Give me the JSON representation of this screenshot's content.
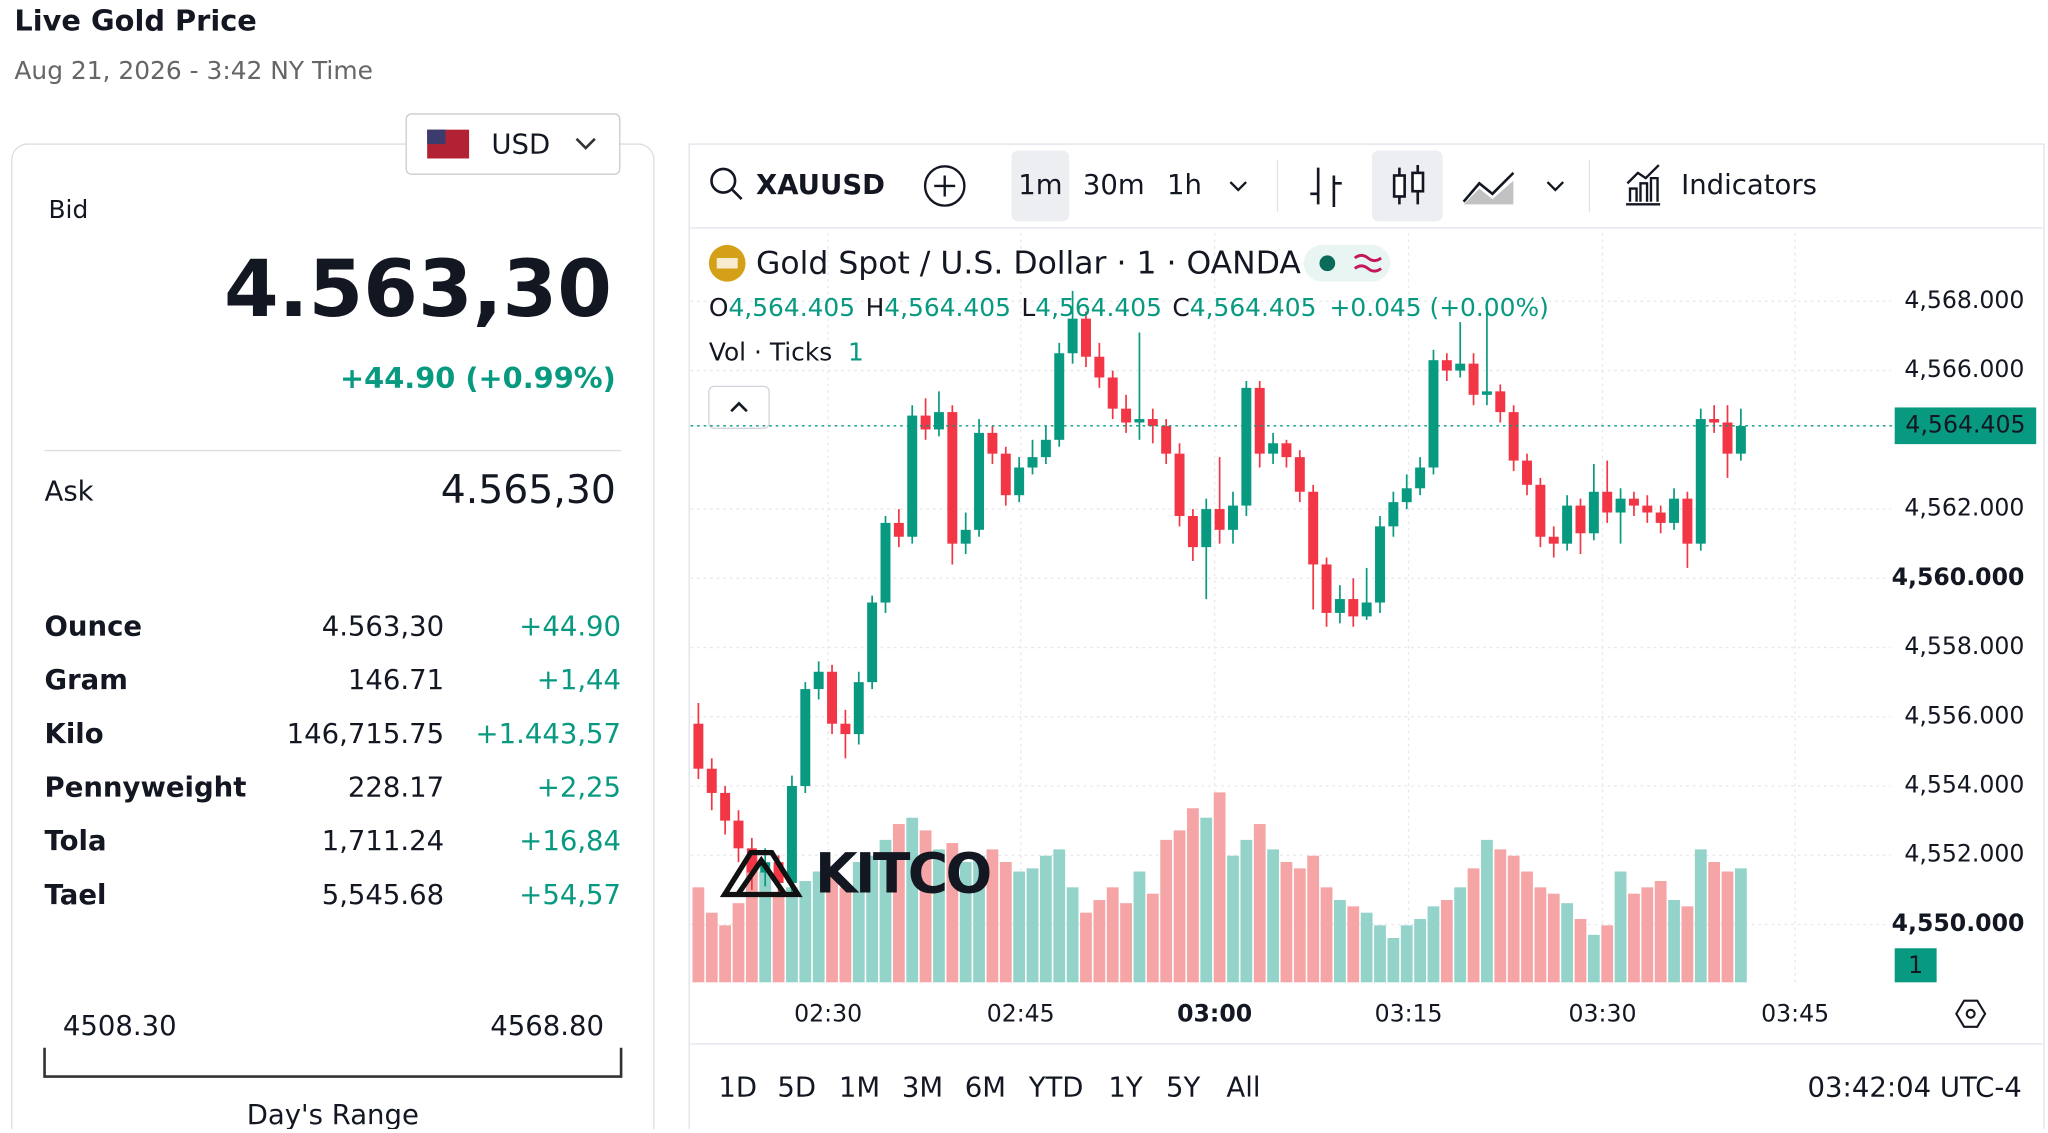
{
  "header": {
    "title": "Live Gold Price",
    "timestamp": "Aug 21, 2026 - 3:42 NY Time"
  },
  "currency": "USD",
  "quote": {
    "bid_label": "Bid",
    "bid": "4.563,30",
    "change": "+44.90 (+0.99%)",
    "ask_label": "Ask",
    "ask": "4.565,30"
  },
  "units": {
    "rows": [
      [
        "Ounce",
        "4.563,30",
        "+44.90"
      ],
      [
        "Gram",
        "146.71",
        "+1,44"
      ],
      [
        "Kilo",
        "146,715.75",
        "+1.443,57"
      ],
      [
        "Pennyweight",
        "228.17",
        "+2,25"
      ],
      [
        "Tola",
        "1,711.24",
        "+16,84"
      ],
      [
        "Tael",
        "5,545.68",
        "+54,57"
      ]
    ]
  },
  "range": {
    "low": "4508.30",
    "high": "4568.80",
    "label": "Day's Range"
  },
  "toolbar": {
    "symbol": "XAUUSD",
    "intervals": [
      "1m",
      "30m",
      "1h"
    ],
    "indicators": "Indicators"
  },
  "watermark": "KITCO",
  "chart_data": {
    "type": "candlestick",
    "title": "Gold Spot / U.S. Dollar · 1 · OANDA",
    "ohlc_legend": [
      {
        "key": "O",
        "value": "4,564.405"
      },
      {
        "key": "H",
        "value": "4,564.405"
      },
      {
        "key": "L",
        "value": "4,564.405"
      },
      {
        "key": "C",
        "value": "4,564.405"
      }
    ],
    "legend_change": "+0.045 (+0.00%)",
    "volume_label": "Vol · Ticks",
    "volume_value": 1,
    "up_color": "#089981",
    "down_color": "#f23645",
    "volume_up_color": "#93d3c9",
    "volume_down_color": "#f5a5a5",
    "open": [
      4555.8,
      4554.5,
      4553.8,
      4553.0,
      4552.2,
      4551.5,
      4551.8,
      4551.2,
      4554.0,
      4556.8,
      4557.3,
      4555.8,
      4555.5,
      4557.0,
      4559.3,
      4561.6,
      4561.2,
      4564.7,
      4564.3,
      4564.8,
      4561.0,
      4561.4,
      4564.2,
      4563.6,
      4562.4,
      4563.2,
      4563.5,
      4564.0,
      4566.5,
      4567.5,
      4566.4,
      4565.8,
      4564.9,
      4564.5,
      4564.6,
      4564.4,
      4563.6,
      4561.8,
      4560.9,
      4562.0,
      4561.4,
      4562.1,
      4565.5,
      4563.6,
      4563.9,
      4563.5,
      4562.5,
      4560.4,
      4559.0,
      4559.4,
      4558.9,
      4559.3,
      4561.5,
      4562.2,
      4562.6,
      4563.2,
      4566.3,
      4566.0,
      4566.2,
      4565.3,
      4565.4,
      4564.8,
      4563.4,
      4562.7,
      4561.2,
      4561.0,
      4562.1,
      4561.3,
      4562.5,
      4561.9,
      4562.3,
      4562.1,
      4561.9,
      4561.6,
      4562.3,
      4561.0,
      4564.6,
      4564.5,
      4563.6
    ],
    "high": [
      4556.4,
      4554.8,
      4554.0,
      4553.3,
      4552.5,
      4552.2,
      4552.0,
      4554.3,
      4557.0,
      4557.6,
      4557.5,
      4556.2,
      4557.3,
      4559.5,
      4561.8,
      4562.0,
      4565.0,
      4565.2,
      4565.4,
      4565.0,
      4561.9,
      4564.6,
      4564.4,
      4563.8,
      4563.5,
      4564.0,
      4564.4,
      4566.8,
      4568.3,
      4567.7,
      4566.8,
      4566.0,
      4565.3,
      4567.1,
      4564.9,
      4564.6,
      4563.9,
      4562.0,
      4562.3,
      4563.5,
      4562.5,
      4565.7,
      4565.7,
      4564.2,
      4564.0,
      4563.7,
      4562.7,
      4560.6,
      4559.8,
      4560.0,
      4560.3,
      4561.8,
      4562.5,
      4563.0,
      4563.5,
      4566.6,
      4566.5,
      4567.4,
      4566.5,
      4567.7,
      4565.6,
      4565.0,
      4563.6,
      4562.9,
      4561.5,
      4562.4,
      4562.3,
      4563.3,
      4563.4,
      4562.6,
      4562.5,
      4562.4,
      4562.1,
      4562.6,
      4562.5,
      4564.9,
      4565.0,
      4565.0,
      4564.9
    ],
    "low": [
      4554.2,
      4553.3,
      4552.6,
      4551.8,
      4551.0,
      4551.1,
      4550.8,
      4550.9,
      4553.8,
      4556.5,
      4555.5,
      4554.8,
      4555.2,
      4556.8,
      4559.0,
      4560.9,
      4561.0,
      4564.0,
      4564.1,
      4560.4,
      4560.7,
      4561.2,
      4563.3,
      4562.1,
      4562.2,
      4563.0,
      4563.3,
      4563.8,
      4566.2,
      4566.1,
      4565.5,
      4564.6,
      4564.2,
      4564.0,
      4563.9,
      4563.3,
      4561.5,
      4560.5,
      4559.4,
      4561.0,
      4561.0,
      4561.8,
      4563.2,
      4563.3,
      4563.2,
      4562.2,
      4559.1,
      4558.6,
      4558.7,
      4558.6,
      4558.8,
      4559.0,
      4561.2,
      4562.0,
      4562.4,
      4563.0,
      4565.7,
      4565.8,
      4565.0,
      4565.0,
      4564.5,
      4563.1,
      4562.4,
      4560.9,
      4560.6,
      4560.8,
      4560.7,
      4561.1,
      4561.6,
      4561.0,
      4561.8,
      4561.6,
      4561.3,
      4561.4,
      4560.3,
      4560.8,
      4564.2,
      4562.9,
      4563.4
    ],
    "close": [
      4554.5,
      4553.8,
      4553.0,
      4552.2,
      4551.5,
      4551.8,
      4551.2,
      4554.0,
      4556.8,
      4557.3,
      4555.8,
      4555.5,
      4557.0,
      4559.3,
      4561.6,
      4561.2,
      4564.7,
      4564.3,
      4564.8,
      4561.0,
      4561.4,
      4564.2,
      4563.6,
      4562.4,
      4563.2,
      4563.5,
      4564.0,
      4566.5,
      4567.5,
      4566.4,
      4565.8,
      4564.9,
      4564.5,
      4564.6,
      4564.4,
      4563.6,
      4561.8,
      4560.9,
      4562.0,
      4561.4,
      4562.1,
      4565.5,
      4563.6,
      4563.9,
      4563.5,
      4562.5,
      4560.4,
      4559.0,
      4559.4,
      4558.9,
      4559.3,
      4561.5,
      4562.2,
      4562.6,
      4563.2,
      4566.3,
      4566.0,
      4566.2,
      4565.3,
      4565.4,
      4564.8,
      4563.4,
      4562.7,
      4561.2,
      4561.0,
      4562.1,
      4561.3,
      4562.5,
      4561.9,
      4562.3,
      4562.1,
      4561.9,
      4561.6,
      4562.3,
      4561.0,
      4564.6,
      4564.5,
      4563.6,
      4564.4
    ],
    "volume": [
      30,
      22,
      18,
      25,
      40,
      35,
      28,
      30,
      32,
      35,
      36,
      30,
      38,
      40,
      45,
      50,
      52,
      48,
      42,
      44,
      38,
      40,
      42,
      38,
      35,
      36,
      40,
      42,
      30,
      22,
      26,
      30,
      25,
      35,
      28,
      45,
      48,
      55,
      52,
      60,
      40,
      45,
      50,
      42,
      38,
      36,
      40,
      30,
      26,
      24,
      22,
      18,
      14,
      18,
      20,
      24,
      26,
      30,
      36,
      45,
      42,
      40,
      35,
      30,
      28,
      25,
      20,
      15,
      18,
      35,
      28,
      30,
      32,
      26,
      24,
      42,
      38,
      35,
      36
    ],
    "ylim": [
      4548.33,
      4569.97
    ],
    "yticks": [
      {
        "value": 4550,
        "label": "4,550.000"
      },
      {
        "value": 4552,
        "label": "4,552.000"
      },
      {
        "value": 4554,
        "label": "4,554.000"
      },
      {
        "value": 4556,
        "label": "4,556.000"
      },
      {
        "value": 4558,
        "label": "4,558.000"
      },
      {
        "value": 4560,
        "label": "4,560.000"
      },
      {
        "value": 4562,
        "label": "4,562.000"
      },
      {
        "value": 4566,
        "label": "4,566.000"
      },
      {
        "value": 4568,
        "label": "4,568.000"
      }
    ],
    "last_price": {
      "value": 4564.405,
      "label": "4,564.405"
    },
    "xticks": [
      "02:30",
      "02:45",
      "03:00",
      "03:15",
      "03:30",
      "03:45"
    ],
    "ranges": [
      "1D",
      "5D",
      "1M",
      "3M",
      "6M",
      "YTD",
      "1Y",
      "5Y",
      "All"
    ],
    "clock": "03:42:04 UTC-4"
  }
}
